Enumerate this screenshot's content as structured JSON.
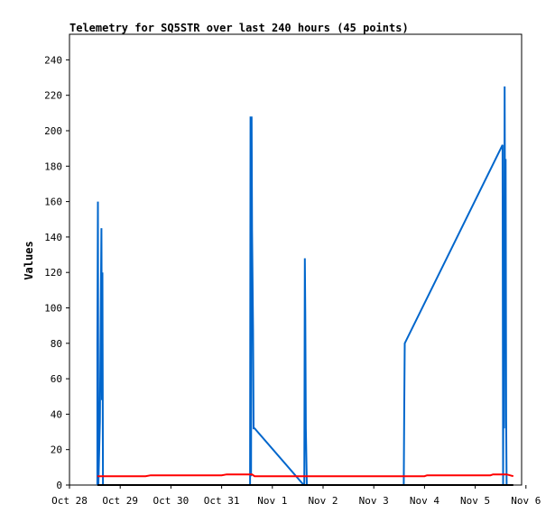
{
  "chart_data": {
    "type": "line",
    "title": "Telemetry for SQ5STR over last 240 hours (45 points)",
    "xlabel": "",
    "ylabel": "Values",
    "xlim": [
      0,
      8.8
    ],
    "ylim": [
      0,
      255
    ],
    "x_tick_values": [
      0,
      1,
      2,
      3,
      4,
      5,
      6,
      7,
      8,
      9
    ],
    "x_tick_labels": [
      "Oct 28",
      "Oct 29",
      "Oct 30",
      "Oct 31",
      "Nov 1",
      "Nov 2",
      "Nov 3",
      "Nov 4",
      "Nov 5",
      "Nov 6"
    ],
    "y_ticks": [
      0,
      20,
      40,
      60,
      80,
      100,
      120,
      140,
      160,
      180,
      200,
      220,
      240
    ],
    "grid": false,
    "legend": "none",
    "series": [
      {
        "color": "#0066cc",
        "points": [
          [
            0.55,
            0
          ],
          [
            0.55,
            80
          ],
          [
            0.56,
            160
          ],
          [
            0.57,
            0
          ],
          [
            0.6,
            36
          ],
          [
            0.62,
            108
          ],
          [
            0.63,
            145
          ],
          [
            0.64,
            48
          ],
          [
            0.65,
            120
          ],
          [
            0.66,
            0
          ],
          [
            3.56,
            0
          ],
          [
            3.57,
            208
          ],
          [
            3.58,
            5
          ],
          [
            3.59,
            208
          ],
          [
            3.6,
            144
          ],
          [
            3.62,
            88
          ],
          [
            3.63,
            32
          ],
          [
            3.65,
            32
          ],
          [
            4.62,
            0
          ],
          [
            4.63,
            0
          ],
          [
            4.64,
            128
          ],
          [
            4.65,
            96
          ],
          [
            4.66,
            32
          ],
          [
            4.68,
            0
          ],
          [
            6.59,
            0
          ],
          [
            6.6,
            40
          ],
          [
            6.61,
            80
          ],
          [
            8.54,
            192
          ],
          [
            8.55,
            0
          ],
          [
            8.56,
            112
          ],
          [
            8.57,
            32
          ],
          [
            8.58,
            225
          ],
          [
            8.59,
            108
          ],
          [
            8.6,
            184
          ],
          [
            8.61,
            36
          ],
          [
            8.62,
            0
          ]
        ]
      },
      {
        "color": "#ff0000",
        "points": [
          [
            0.55,
            5
          ],
          [
            1.5,
            5
          ],
          [
            1.6,
            5.5
          ],
          [
            3.0,
            5.5
          ],
          [
            3.1,
            6
          ],
          [
            3.6,
            6
          ],
          [
            3.65,
            5
          ],
          [
            7.0,
            5
          ],
          [
            7.05,
            5.5
          ],
          [
            8.3,
            5.5
          ],
          [
            8.35,
            6
          ],
          [
            8.62,
            6
          ],
          [
            8.75,
            5
          ]
        ]
      },
      {
        "color": "#000000",
        "points": [
          [
            0.55,
            0
          ],
          [
            8.75,
            0
          ]
        ]
      }
    ]
  }
}
